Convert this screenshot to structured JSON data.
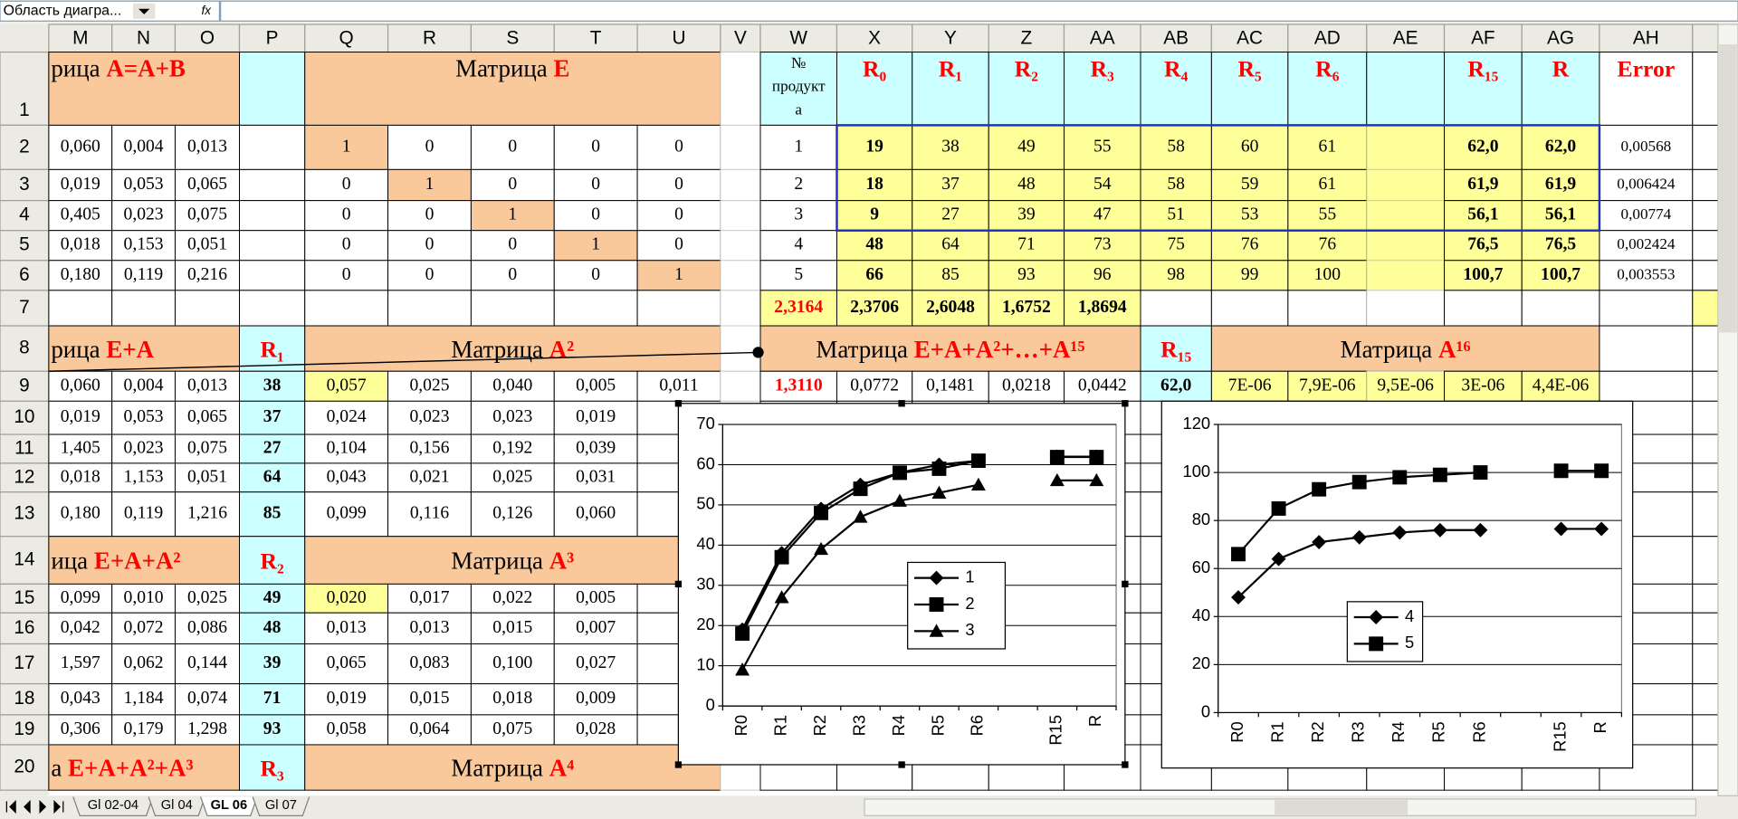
{
  "name_box": "Область диагра...",
  "formula_icon": "fx",
  "columns": [
    "M",
    "N",
    "O",
    "P",
    "Q",
    "R",
    "S",
    "T",
    "U",
    "V",
    "W",
    "X",
    "Y",
    "Z",
    "AA",
    "AB",
    "AC",
    "AD",
    "AE",
    "AF",
    "AG",
    "AH"
  ],
  "rows": [
    {
      "number": "1",
      "cells": {
        "M": {
          "label": "рица",
          "formula": "A=A+B"
        },
        "Q": {
          "label": "Матрица",
          "formula": "E"
        },
        "W": [
          "№",
          "продукт",
          "а"
        ],
        "X": "R₀",
        "Y": "R₁",
        "Z": "R₂",
        "AA": "R₃",
        "AB": "R₄",
        "AC": "R₅",
        "AD": "R₆",
        "AF": "R₁₅",
        "AG": "R",
        "AH": "Error"
      }
    },
    {
      "number": "2",
      "cells": {
        "M": "0,060",
        "N": "0,004",
        "O": "0,013",
        "Q": "1",
        "R": "0",
        "S": "0",
        "T": "0",
        "U": "0",
        "W": "1",
        "X": "19",
        "Y": "38",
        "Z": "49",
        "AA": "55",
        "AB": "58",
        "AC": "60",
        "AD": "61",
        "AF": "62,0",
        "AG": "62,0",
        "AH": "0,00568"
      }
    },
    {
      "number": "3",
      "cells": {
        "M": "0,019",
        "N": "0,053",
        "O": "0,065",
        "Q": "0",
        "R": "1",
        "S": "0",
        "T": "0",
        "U": "0",
        "W": "2",
        "X": "18",
        "Y": "37",
        "Z": "48",
        "AA": "54",
        "AB": "58",
        "AC": "59",
        "AD": "61",
        "AF": "61,9",
        "AG": "61,9",
        "AH": "0,006424"
      }
    },
    {
      "number": "4",
      "cells": {
        "M": "0,405",
        "N": "0,023",
        "O": "0,075",
        "Q": "0",
        "R": "0",
        "S": "1",
        "T": "0",
        "U": "0",
        "W": "3",
        "X": "9",
        "Y": "27",
        "Z": "39",
        "AA": "47",
        "AB": "51",
        "AC": "53",
        "AD": "55",
        "AF": "56,1",
        "AG": "56,1",
        "AH": "0,00774"
      }
    },
    {
      "number": "5",
      "cells": {
        "M": "0,018",
        "N": "0,153",
        "O": "0,051",
        "Q": "0",
        "R": "0",
        "S": "0",
        "T": "1",
        "U": "0",
        "W": "4",
        "X": "48",
        "Y": "64",
        "Z": "71",
        "AA": "73",
        "AB": "75",
        "AC": "76",
        "AD": "76",
        "AF": "76,5",
        "AG": "76,5",
        "AH": "0,002424"
      }
    },
    {
      "number": "6",
      "cells": {
        "M": "0,180",
        "N": "0,119",
        "O": "0,216",
        "Q": "0",
        "R": "0",
        "S": "0",
        "T": "0",
        "U": "1",
        "W": "5",
        "X": "66",
        "Y": "85",
        "Z": "93",
        "AA": "96",
        "AB": "98",
        "AC": "99",
        "AD": "100",
        "AF": "100,7",
        "AG": "100,7",
        "AH": "0,003553"
      }
    },
    {
      "number": "7",
      "cells": {
        "W": "2,3164",
        "X": "2,3706",
        "Y": "2,6048",
        "Z": "1,6752",
        "AA": "1,8694"
      }
    },
    {
      "number": "8",
      "cells": {
        "M": {
          "label": "рица",
          "formula": "E+A"
        },
        "P": "R₁",
        "Q": {
          "label": "Матрица",
          "formula": "A²"
        },
        "W": {
          "label": "Матрица",
          "formula": "E+A+A²+…+A¹⁵"
        },
        "AB": "R₁₅",
        "AC": {
          "label": "Матрица",
          "formula": "A¹⁶"
        }
      }
    },
    {
      "number": "9",
      "cells": {
        "M": "0,060",
        "N": "0,004",
        "O": "0,013",
        "P": "38",
        "Q": "0,057",
        "R": "0,025",
        "S": "0,040",
        "T": "0,005",
        "U": "0,011",
        "W": "1,3110",
        "X": "0,0772",
        "Y": "0,1481",
        "Z": "0,0218",
        "AA": "0,0442",
        "AB": "62,0",
        "AC": "7E-06",
        "AD": "7,9E-06",
        "AE": "9,5E-06",
        "AF": "3E-06",
        "AG": "4,4E-06"
      }
    },
    {
      "number": "10",
      "cells": {
        "M": "0,019",
        "N": "0,053",
        "O": "0,065",
        "P": "37",
        "Q": "0,024",
        "R": "0,023",
        "S": "0,023",
        "T": "0,019"
      }
    },
    {
      "number": "11",
      "cells": {
        "M": "1,405",
        "N": "0,023",
        "O": "0,075",
        "P": "27",
        "Q": "0,104",
        "R": "0,156",
        "S": "0,192",
        "T": "0,039"
      }
    },
    {
      "number": "12",
      "cells": {
        "M": "0,018",
        "N": "1,153",
        "O": "0,051",
        "P": "64",
        "Q": "0,043",
        "R": "0,021",
        "S": "0,025",
        "T": "0,031"
      }
    },
    {
      "number": "13",
      "cells": {
        "M": "0,180",
        "N": "0,119",
        "O": "1,216",
        "P": "85",
        "Q": "0,099",
        "R": "0,116",
        "S": "0,126",
        "T": "0,060"
      }
    },
    {
      "number": "14",
      "cells": {
        "M": {
          "label": "ица",
          "formula": "E+A+A²"
        },
        "P": "R₂",
        "Q": {
          "label": "Матрица",
          "formula": "A³"
        }
      }
    },
    {
      "number": "15",
      "cells": {
        "M": "0,099",
        "N": "0,010",
        "O": "0,025",
        "P": "49",
        "Q": "0,020",
        "R": "0,017",
        "S": "0,022",
        "T": "0,005"
      }
    },
    {
      "number": "16",
      "cells": {
        "M": "0,042",
        "N": "0,072",
        "O": "0,086",
        "P": "48",
        "Q": "0,013",
        "R": "0,013",
        "S": "0,015",
        "T": "0,007"
      }
    },
    {
      "number": "17",
      "cells": {
        "M": "1,597",
        "N": "0,062",
        "O": "0,144",
        "P": "39",
        "Q": "0,065",
        "R": "0,083",
        "S": "0,100",
        "T": "0,027"
      }
    },
    {
      "number": "18",
      "cells": {
        "M": "0,043",
        "N": "1,184",
        "O": "0,074",
        "P": "71",
        "Q": "0,019",
        "R": "0,015",
        "S": "0,018",
        "T": "0,009"
      }
    },
    {
      "number": "19",
      "cells": {
        "M": "0,306",
        "N": "0,179",
        "O": "1,298",
        "P": "93",
        "Q": "0,058",
        "R": "0,064",
        "S": "0,075",
        "T": "0,028"
      }
    },
    {
      "number": "20",
      "cells": {
        "M": {
          "label": "а",
          "formula": "E+A+A²+A³"
        },
        "P": "R₃",
        "Q": {
          "label": "Матрица",
          "formula": "A⁴"
        }
      }
    }
  ],
  "sheet_tabs": [
    "Gl 02-04",
    "Gl 04",
    "GL 06",
    "Gl 07"
  ],
  "chart_data": [
    {
      "type": "line",
      "categories": [
        "R0",
        "R1",
        "R2",
        "R3",
        "R4",
        "R5",
        "R6",
        null,
        "R15",
        "R"
      ],
      "series": [
        {
          "name": "1",
          "color": "#000000",
          "marker": "diamond",
          "values": [
            19,
            38,
            49,
            55,
            58,
            60,
            61,
            null,
            62.0,
            62.0
          ]
        },
        {
          "name": "2",
          "color": "#000000",
          "marker": "square",
          "values": [
            18,
            37,
            48,
            54,
            58,
            59,
            61,
            null,
            61.9,
            61.9
          ]
        },
        {
          "name": "3",
          "color": "#000000",
          "marker": "triangle",
          "values": [
            9,
            27,
            39,
            47,
            51,
            53,
            55,
            null,
            56.1,
            56.1
          ]
        }
      ],
      "ylim": [
        0,
        70
      ],
      "yticks": [
        0,
        10,
        20,
        30,
        40,
        50,
        60,
        70
      ],
      "grid": true,
      "legend": "center-right"
    },
    {
      "type": "line",
      "categories": [
        "R0",
        "R1",
        "R2",
        "R3",
        "R4",
        "R5",
        "R6",
        null,
        "R15",
        "R"
      ],
      "series": [
        {
          "name": "4",
          "color": "#000000",
          "marker": "diamond",
          "values": [
            48,
            64,
            71,
            73,
            75,
            76,
            76,
            null,
            76.5,
            76.5
          ]
        },
        {
          "name": "5",
          "color": "#000000",
          "marker": "square",
          "values": [
            66,
            85,
            93,
            96,
            98,
            99,
            100,
            null,
            100.7,
            100.7
          ]
        }
      ],
      "ylim": [
        0,
        120
      ],
      "yticks": [
        0,
        20,
        40,
        60,
        80,
        100,
        120
      ],
      "grid": true,
      "legend": "lower-left"
    }
  ]
}
